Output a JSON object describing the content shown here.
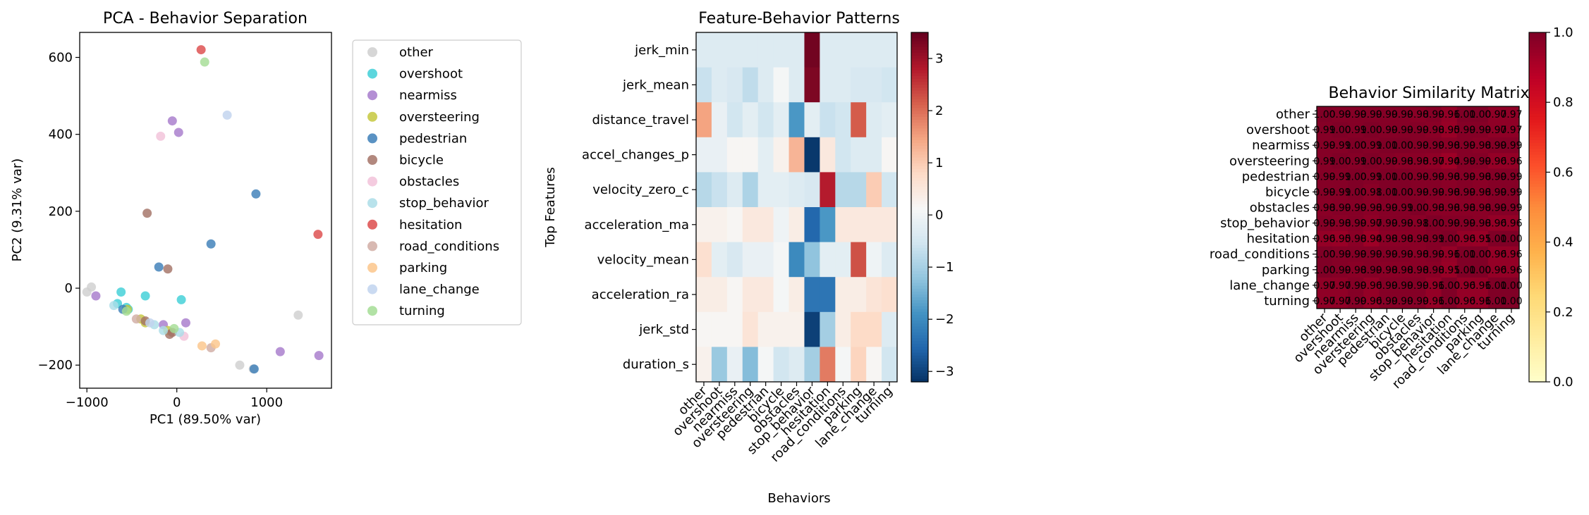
{
  "chart_data": [
    {
      "type": "scatter",
      "title": "PCA - Behavior Separation",
      "xlabel": "PC1 (89.50% var)",
      "ylabel": "PC2 (9.31% var)",
      "xlim": [
        -1080,
        1720
      ],
      "ylim": [
        -260,
        665
      ],
      "xticks": [
        -1000,
        0,
        1000
      ],
      "xtick_labels": [
        "−1000",
        "0",
        "1000"
      ],
      "yticks": [
        -200,
        0,
        200,
        400,
        600
      ],
      "ytick_labels": [
        "−200",
        "0",
        "200",
        "400",
        "600"
      ],
      "legend_position": "outside-right",
      "series": [
        {
          "name": "other",
          "color": "#cfcfcf",
          "points": [
            [
              -950,
              3
            ],
            [
              -1000,
              -10
            ],
            [
              850,
              -210
            ],
            [
              700,
              -200
            ],
            [
              1350,
              -70
            ]
          ]
        },
        {
          "name": "overshoot",
          "color": "#3fcfd7",
          "points": [
            [
              -620,
              -10
            ],
            [
              -540,
              -55
            ],
            [
              -350,
              -20
            ],
            [
              50,
              -30
            ],
            [
              -660,
              -40
            ],
            [
              -560,
              -50
            ]
          ]
        },
        {
          "name": "nearmiss",
          "color": "#a77bcc",
          "points": [
            [
              -900,
              -20
            ],
            [
              -50,
              435
            ],
            [
              20,
              405
            ],
            [
              1150,
              -165
            ],
            [
              1580,
              -175
            ],
            [
              -150,
              -95
            ],
            [
              100,
              -90
            ]
          ]
        },
        {
          "name": "oversteering",
          "color": "#c5c83e",
          "points": [
            [
              -550,
              -55
            ],
            [
              -400,
              -80
            ],
            [
              -350,
              -90
            ],
            [
              -100,
              -110
            ]
          ]
        },
        {
          "name": "pedestrian",
          "color": "#3d7fb8",
          "points": [
            [
              880,
              245
            ],
            [
              380,
              115
            ],
            [
              -200,
              55
            ],
            [
              860,
              -210
            ],
            [
              -600,
              -55
            ]
          ]
        },
        {
          "name": "bicycle",
          "color": "#a47367",
          "points": [
            [
              -330,
              195
            ],
            [
              -100,
              50
            ],
            [
              -350,
              -85
            ],
            [
              -50,
              -115
            ],
            [
              -80,
              -120
            ]
          ]
        },
        {
          "name": "obstacles",
          "color": "#f2c2d9",
          "points": [
            [
              -180,
              395
            ],
            [
              80,
              -125
            ]
          ]
        },
        {
          "name": "stop_behavior",
          "color": "#acdde8",
          "points": [
            [
              -700,
              -45
            ],
            [
              -250,
              -95
            ],
            [
              -150,
              -110
            ],
            [
              30,
              -115
            ]
          ]
        },
        {
          "name": "hesitation",
          "color": "#dd4c4c",
          "points": [
            [
              270,
              620
            ],
            [
              1570,
              140
            ]
          ]
        },
        {
          "name": "road_conditions",
          "color": "#d1ada5",
          "points": [
            [
              380,
              -155
            ],
            [
              -450,
              -80
            ]
          ]
        },
        {
          "name": "parking",
          "color": "#fbc68b",
          "points": [
            [
              280,
              -150
            ],
            [
              430,
              -145
            ]
          ]
        },
        {
          "name": "lane_change",
          "color": "#c1d3ee",
          "points": [
            [
              560,
              450
            ],
            [
              -300,
              -90
            ]
          ]
        },
        {
          "name": "turning",
          "color": "#a5dd95",
          "points": [
            [
              310,
              588
            ],
            [
              -560,
              -60
            ],
            [
              -30,
              -105
            ]
          ]
        }
      ]
    },
    {
      "type": "heatmap",
      "title": "Feature-Behavior Patterns",
      "xlabel": "Behaviors",
      "ylabel": "Top Features",
      "rows": [
        "jerk_min",
        "jerk_mean",
        "distance_travel",
        "accel_changes_p",
        "velocity_zero_c",
        "acceleration_ma",
        "velocity_mean",
        "acceleration_ra",
        "jerk_std",
        "duration_s"
      ],
      "columns": [
        "other",
        "overshoot",
        "nearmiss",
        "oversteering",
        "pedestrian",
        "bicycle",
        "obstacles",
        "stop_behavior",
        "hesitation",
        "road_conditions",
        "parking",
        "lane_change",
        "turning"
      ],
      "values": [
        [
          -0.3,
          -0.3,
          -0.3,
          -0.3,
          -0.3,
          -0.3,
          -0.3,
          3.4,
          -0.3,
          -0.3,
          -0.3,
          -0.3,
          -0.3
        ],
        [
          -0.6,
          -0.3,
          -0.4,
          -0.7,
          -0.3,
          0.1,
          -0.3,
          3.3,
          -0.3,
          -0.3,
          -0.4,
          -0.4,
          -0.5
        ],
        [
          1.5,
          -0.1,
          -0.5,
          -0.2,
          -0.5,
          -0.2,
          -1.8,
          -0.2,
          -0.6,
          -0.5,
          2.2,
          -0.3,
          -0.2
        ],
        [
          -0.1,
          -0.1,
          0.2,
          0.2,
          -0.2,
          0.3,
          1.3,
          -3.1,
          0.5,
          -0.5,
          -0.3,
          -0.3,
          0.2
        ],
        [
          -0.8,
          -0.6,
          -0.3,
          -0.9,
          -0.2,
          -0.2,
          -0.3,
          -0.4,
          2.8,
          -0.8,
          -0.8,
          1.0,
          -0.5
        ],
        [
          0.3,
          0.3,
          0.2,
          0.5,
          0.5,
          0.0,
          0.4,
          -2.5,
          -1.8,
          0.5,
          0.5,
          0.5,
          0.5
        ],
        [
          0.7,
          -0.2,
          -0.4,
          -0.1,
          -0.1,
          0.1,
          -2.0,
          -1.2,
          -0.2,
          -0.2,
          2.3,
          0.0,
          -0.3
        ],
        [
          0.4,
          0.4,
          0.2,
          0.5,
          0.5,
          0.1,
          0.4,
          -2.3,
          -2.3,
          0.4,
          0.4,
          0.6,
          0.7
        ],
        [
          0.2,
          0.2,
          0.2,
          0.6,
          0.3,
          0.3,
          0.3,
          -3.0,
          -1.0,
          0.4,
          0.8,
          0.8,
          -0.3
        ],
        [
          0.3,
          -1.1,
          -0.1,
          -1.3,
          0.1,
          -0.5,
          -0.3,
          -1.0,
          1.9,
          0.1,
          0.9,
          0.2,
          -0.5
        ]
      ],
      "colorbar_ticks": [
        3,
        2,
        1,
        0,
        -1,
        -2,
        -3
      ],
      "colorbar_tick_labels": [
        "3",
        "2",
        "1",
        "0",
        "−1",
        "−2",
        "−3"
      ],
      "vmin": -3.2,
      "vmax": 3.5,
      "colormap": "RdBu_r"
    },
    {
      "type": "heatmap",
      "title": "Behavior Similarity Matrix",
      "labels": [
        "other",
        "overshoot",
        "nearmiss",
        "oversteering",
        "pedestrian",
        "bicycle",
        "obstacles",
        "stop_behavior",
        "hesitation",
        "road_conditions",
        "parking",
        "lane_change",
        "turning"
      ],
      "cell_text": [
        [
          "1.00",
          "0.99",
          "0.99",
          "0.99",
          "0.99",
          "0.99",
          "0.98",
          "0.99",
          "0.96",
          "1.00",
          "1.00",
          "0.97",
          "0.97"
        ],
        [
          "0.99",
          "1.00",
          "0.99",
          "1.00",
          "0.99",
          "0.99",
          "0.99",
          "0.98",
          "0.95",
          "0.99",
          "0.99",
          "0.97",
          "0.97"
        ],
        [
          "0.99",
          "0.99",
          "1.00",
          "0.99",
          "1.00",
          "1.00",
          "0.99",
          "0.99",
          "0.98",
          "0.99",
          "0.98",
          "0.99",
          "0.99"
        ],
        [
          "0.99",
          "1.00",
          "0.99",
          "1.00",
          "0.99",
          "0.98",
          "0.98",
          "0.97",
          "0.94",
          "0.99",
          "0.99",
          "0.96",
          "0.96"
        ],
        [
          "0.99",
          "0.99",
          "1.00",
          "0.99",
          "1.00",
          "1.00",
          "0.99",
          "0.99",
          "0.98",
          "0.99",
          "0.98",
          "0.99",
          "0.99"
        ],
        [
          "0.99",
          "0.99",
          "1.00",
          "0.98",
          "1.00",
          "1.00",
          "0.99",
          "0.99",
          "0.98",
          "0.99",
          "0.98",
          "0.99",
          "0.99"
        ],
        [
          "0.98",
          "0.99",
          "0.99",
          "0.98",
          "0.99",
          "0.99",
          "1.00",
          "0.98",
          "0.98",
          "0.98",
          "0.98",
          "0.99",
          "0.99"
        ],
        [
          "0.99",
          "0.98",
          "0.99",
          "0.97",
          "0.99",
          "0.99",
          "0.98",
          "1.00",
          "0.99",
          "0.99",
          "0.98",
          "0.96",
          "0.96"
        ],
        [
          "0.96",
          "0.95",
          "0.98",
          "0.94",
          "0.98",
          "0.98",
          "0.98",
          "0.99",
          "1.00",
          "0.96",
          "0.95",
          "1.00",
          "1.00"
        ],
        [
          "1.00",
          "0.99",
          "0.99",
          "0.99",
          "0.99",
          "0.99",
          "0.98",
          "0.99",
          "0.96",
          "1.00",
          "1.00",
          "0.96",
          "0.96"
        ],
        [
          "1.00",
          "0.99",
          "0.98",
          "0.99",
          "0.98",
          "0.98",
          "0.98",
          "0.98",
          "0.95",
          "1.00",
          "1.00",
          "0.96",
          "0.96"
        ],
        [
          "0.97",
          "0.97",
          "0.99",
          "0.96",
          "0.99",
          "0.99",
          "0.99",
          "0.96",
          "1.00",
          "0.96",
          "0.96",
          "1.00",
          "1.00"
        ],
        [
          "0.97",
          "0.97",
          "0.99",
          "0.96",
          "0.99",
          "0.99",
          "0.99",
          "0.96",
          "1.00",
          "0.96",
          "0.96",
          "1.00",
          "1.00"
        ]
      ],
      "colorbar_ticks": [
        1.0,
        0.8,
        0.6,
        0.4,
        0.2,
        0.0
      ],
      "colorbar_tick_labels": [
        "1.0",
        "0.8",
        "0.6",
        "0.4",
        "0.2",
        "0.0"
      ],
      "vmin": 0.0,
      "vmax": 1.0,
      "colormap": "YlOrRd"
    }
  ]
}
